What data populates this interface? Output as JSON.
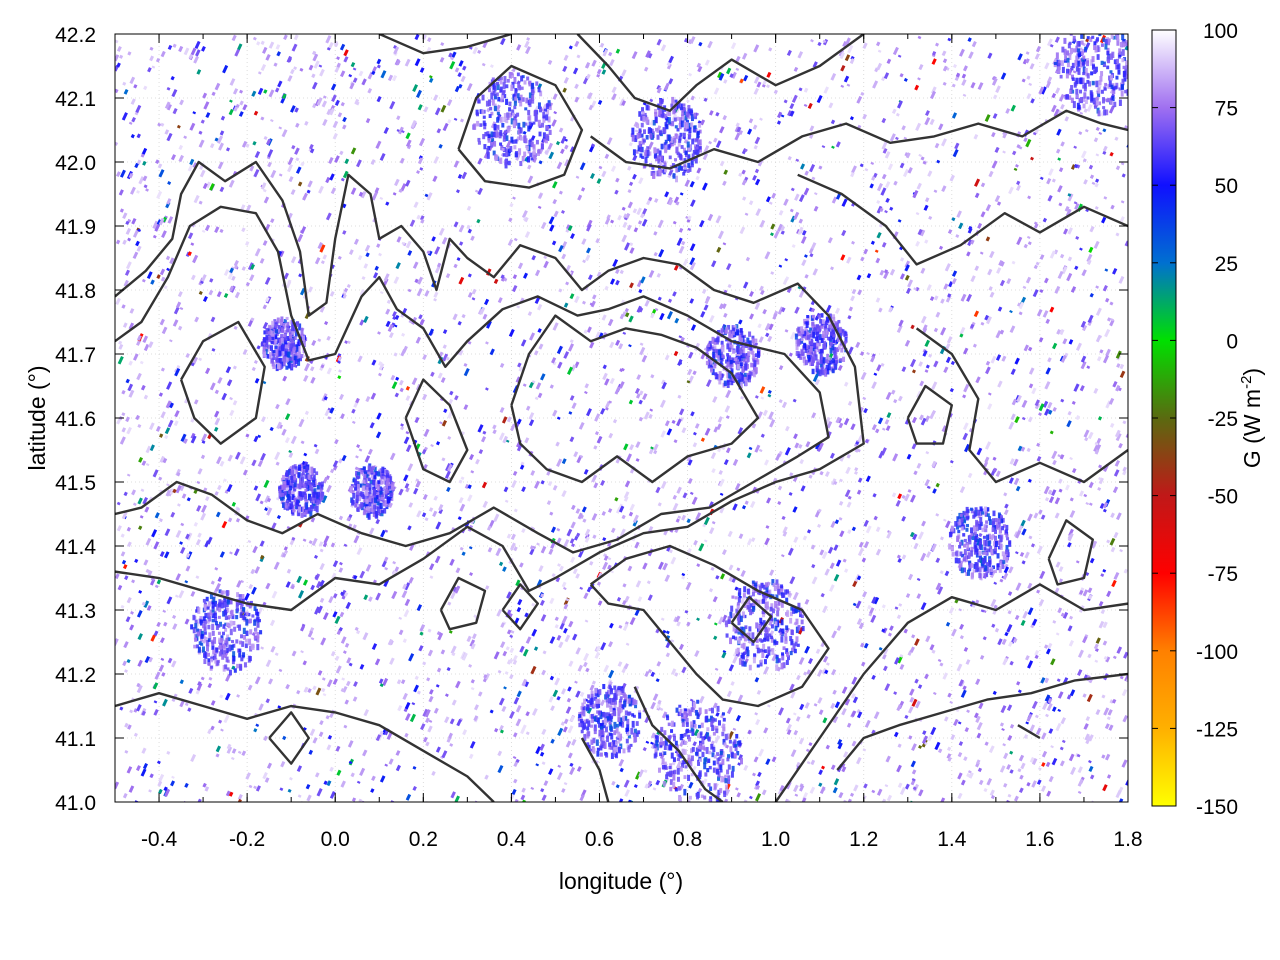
{
  "chart_data": {
    "type": "heatmap",
    "title": "",
    "xlabel": "longitude (°)",
    "ylabel": "latitude (°)",
    "xlim": [
      -0.5,
      1.8
    ],
    "ylim": [
      41.0,
      42.2
    ],
    "xticks": [
      -0.4,
      -0.2,
      0.0,
      0.2,
      0.4,
      0.6,
      0.8,
      1.0,
      1.2,
      1.4,
      1.6,
      1.8
    ],
    "xtick_labels": [
      "-0.4",
      "-0.2",
      "0.0",
      "0.2",
      "0.4",
      "0.6",
      "0.8",
      "1.0",
      "1.2",
      "1.4",
      "1.6",
      "1.8"
    ],
    "yticks": [
      41.0,
      41.1,
      41.2,
      41.3,
      41.4,
      41.5,
      41.6,
      41.7,
      41.8,
      41.9,
      42.0,
      42.1,
      42.2
    ],
    "ytick_labels": [
      "41.0",
      "41.1",
      "41.2",
      "41.3",
      "41.4",
      "41.5",
      "41.6",
      "41.7",
      "41.8",
      "41.9",
      "42.0",
      "42.1",
      "42.2"
    ],
    "grid": true,
    "colorbar": {
      "label_main": "G (W m",
      "label_sup": "-2",
      "label_end": ")",
      "range": [
        -150,
        100
      ],
      "ticks": [
        100,
        75,
        50,
        25,
        0,
        -25,
        -50,
        -75,
        -100,
        -125,
        -150
      ],
      "tick_labels": [
        "100",
        "75",
        "50",
        "25",
        "0",
        "-25",
        "-50",
        "-75",
        "-100",
        "-125",
        "-150"
      ],
      "palette": [
        {
          "value": 100,
          "color": "#ffffff"
        },
        {
          "value": 75,
          "color": "#a070f0"
        },
        {
          "value": 50,
          "color": "#1010ff"
        },
        {
          "value": 25,
          "color": "#0070d0"
        },
        {
          "value": 0,
          "color": "#00e000"
        },
        {
          "value": -25,
          "color": "#5a6a10"
        },
        {
          "value": -50,
          "color": "#c01818"
        },
        {
          "value": -75,
          "color": "#ff0000"
        },
        {
          "value": -100,
          "color": "#ff8000"
        },
        {
          "value": -125,
          "color": "#ffb000"
        },
        {
          "value": -150,
          "color": "#ffff00"
        }
      ]
    },
    "purple_regions": [
      {
        "lon": -0.12,
        "lat": 41.72,
        "radius": 0.05
      },
      {
        "lon": 0.9,
        "lat": 41.7,
        "radius": 0.06
      },
      {
        "lon": -0.08,
        "lat": 41.49,
        "radius": 0.05
      },
      {
        "lon": 0.08,
        "lat": 41.49,
        "radius": 0.05
      },
      {
        "lon": 0.97,
        "lat": 41.28,
        "radius": 0.09
      },
      {
        "lon": 0.82,
        "lat": 41.08,
        "radius": 0.1
      },
      {
        "lon": 1.72,
        "lat": 42.15,
        "radius": 0.09
      },
      {
        "lon": 0.4,
        "lat": 42.07,
        "radius": 0.09
      },
      {
        "lon": 0.75,
        "lat": 42.04,
        "radius": 0.08
      },
      {
        "lon": 1.46,
        "lat": 41.41,
        "radius": 0.07
      },
      {
        "lon": -0.25,
        "lat": 41.27,
        "radius": 0.08
      },
      {
        "lon": 0.62,
        "lat": 41.13,
        "radius": 0.07
      },
      {
        "lon": 1.1,
        "lat": 41.72,
        "radius": 0.06
      }
    ],
    "contours": [
      [
        [
          -0.5,
          41.79
        ],
        [
          -0.43,
          41.83
        ],
        [
          -0.37,
          41.88
        ],
        [
          -0.35,
          41.95
        ],
        [
          -0.31,
          42.0
        ],
        [
          -0.25,
          41.97
        ],
        [
          -0.18,
          42.0
        ],
        [
          -0.12,
          41.94
        ],
        [
          -0.08,
          41.86
        ],
        [
          -0.06,
          41.76
        ],
        [
          -0.02,
          41.78
        ],
        [
          0.0,
          41.88
        ],
        [
          0.03,
          41.98
        ],
        [
          0.08,
          41.95
        ],
        [
          0.1,
          41.88
        ],
        [
          0.15,
          41.9
        ],
        [
          0.2,
          41.86
        ],
        [
          0.23,
          41.8
        ],
        [
          0.26,
          41.88
        ],
        [
          0.3,
          41.85
        ],
        [
          0.36,
          41.82
        ],
        [
          0.42,
          41.87
        ],
        [
          0.5,
          41.85
        ],
        [
          0.56,
          41.8
        ],
        [
          0.62,
          41.83
        ],
        [
          0.7,
          41.85
        ],
        [
          0.78,
          41.84
        ],
        [
          0.86,
          41.8
        ],
        [
          0.95,
          41.78
        ],
        [
          1.05,
          41.81
        ],
        [
          1.12,
          41.76
        ],
        [
          1.18,
          41.68
        ],
        [
          1.2,
          41.56
        ],
        [
          1.1,
          41.52
        ],
        [
          1.0,
          41.5
        ],
        [
          0.9,
          41.47
        ],
        [
          0.8,
          41.43
        ],
        [
          0.7,
          41.42
        ],
        [
          0.6,
          41.39
        ],
        [
          0.5,
          41.35
        ],
        [
          0.44,
          41.33
        ],
        [
          0.38,
          41.4
        ],
        [
          0.3,
          41.43
        ],
        [
          0.2,
          41.38
        ],
        [
          0.1,
          41.34
        ],
        [
          0.0,
          41.35
        ],
        [
          -0.1,
          41.3
        ],
        [
          -0.2,
          41.31
        ],
        [
          -0.3,
          41.33
        ],
        [
          -0.4,
          41.35
        ],
        [
          -0.5,
          41.36
        ]
      ],
      [
        [
          -0.5,
          41.72
        ],
        [
          -0.44,
          41.75
        ],
        [
          -0.38,
          41.82
        ],
        [
          -0.33,
          41.9
        ],
        [
          -0.26,
          41.93
        ],
        [
          -0.18,
          41.92
        ],
        [
          -0.13,
          41.86
        ],
        [
          -0.1,
          41.76
        ],
        [
          -0.06,
          41.69
        ],
        [
          0.0,
          41.7
        ],
        [
          0.06,
          41.79
        ],
        [
          0.1,
          41.82
        ],
        [
          0.14,
          41.77
        ],
        [
          0.2,
          41.74
        ],
        [
          0.25,
          41.68
        ],
        [
          0.3,
          41.72
        ],
        [
          0.38,
          41.77
        ],
        [
          0.46,
          41.79
        ],
        [
          0.55,
          41.76
        ],
        [
          0.62,
          41.77
        ],
        [
          0.7,
          41.79
        ],
        [
          0.8,
          41.76
        ],
        [
          0.9,
          41.72
        ],
        [
          1.02,
          41.7
        ],
        [
          1.1,
          41.64
        ],
        [
          1.12,
          41.57
        ],
        [
          1.05,
          41.54
        ],
        [
          0.95,
          41.5
        ],
        [
          0.85,
          41.46
        ],
        [
          0.74,
          41.45
        ],
        [
          0.64,
          41.41
        ],
        [
          0.54,
          41.39
        ],
        [
          0.46,
          41.42
        ],
        [
          0.36,
          41.46
        ],
        [
          0.26,
          41.42
        ],
        [
          0.16,
          41.4
        ],
        [
          0.06,
          41.42
        ],
        [
          -0.04,
          41.45
        ],
        [
          -0.12,
          41.42
        ],
        [
          -0.2,
          41.44
        ],
        [
          -0.28,
          41.48
        ],
        [
          -0.36,
          41.5
        ],
        [
          -0.44,
          41.46
        ],
        [
          -0.5,
          41.45
        ]
      ],
      [
        [
          0.4,
          41.62
        ],
        [
          0.44,
          41.7
        ],
        [
          0.5,
          41.76
        ],
        [
          0.58,
          41.72
        ],
        [
          0.66,
          41.74
        ],
        [
          0.74,
          41.73
        ],
        [
          0.82,
          41.71
        ],
        [
          0.9,
          41.67
        ],
        [
          0.96,
          41.6
        ],
        [
          0.9,
          41.56
        ],
        [
          0.8,
          41.54
        ],
        [
          0.72,
          41.5
        ],
        [
          0.64,
          41.54
        ],
        [
          0.56,
          41.5
        ],
        [
          0.48,
          41.52
        ],
        [
          0.42,
          41.56
        ],
        [
          0.4,
          41.62
        ]
      ],
      [
        [
          -0.35,
          41.66
        ],
        [
          -0.3,
          41.72
        ],
        [
          -0.22,
          41.75
        ],
        [
          -0.16,
          41.68
        ],
        [
          -0.18,
          41.6
        ],
        [
          -0.26,
          41.56
        ],
        [
          -0.32,
          41.6
        ],
        [
          -0.35,
          41.66
        ]
      ],
      [
        [
          0.16,
          41.6
        ],
        [
          0.2,
          41.66
        ],
        [
          0.26,
          41.62
        ],
        [
          0.3,
          41.55
        ],
        [
          0.26,
          41.5
        ],
        [
          0.2,
          41.52
        ],
        [
          0.16,
          41.6
        ]
      ],
      [
        [
          0.28,
          42.02
        ],
        [
          0.32,
          42.1
        ],
        [
          0.4,
          42.15
        ],
        [
          0.5,
          42.12
        ],
        [
          0.56,
          42.05
        ],
        [
          0.52,
          41.98
        ],
        [
          0.44,
          41.96
        ],
        [
          0.34,
          41.97
        ],
        [
          0.28,
          42.02
        ]
      ],
      [
        [
          0.1,
          42.2
        ],
        [
          0.2,
          42.17
        ],
        [
          0.3,
          42.18
        ],
        [
          0.4,
          42.2
        ]
      ],
      [
        [
          0.55,
          42.2
        ],
        [
          0.62,
          42.15
        ],
        [
          0.68,
          42.1
        ],
        [
          0.76,
          42.08
        ],
        [
          0.82,
          42.12
        ],
        [
          0.9,
          42.16
        ],
        [
          1.0,
          42.12
        ],
        [
          1.1,
          42.15
        ],
        [
          1.2,
          42.2
        ]
      ],
      [
        [
          0.58,
          42.04
        ],
        [
          0.66,
          42.0
        ],
        [
          0.76,
          41.99
        ],
        [
          0.86,
          42.02
        ],
        [
          0.96,
          42.0
        ],
        [
          1.06,
          42.04
        ],
        [
          1.16,
          42.06
        ],
        [
          1.26,
          42.03
        ],
        [
          1.36,
          42.04
        ],
        [
          1.46,
          42.06
        ],
        [
          1.56,
          42.04
        ],
        [
          1.66,
          42.08
        ],
        [
          1.74,
          42.06
        ],
        [
          1.8,
          42.05
        ]
      ],
      [
        [
          1.05,
          41.98
        ],
        [
          1.15,
          41.95
        ],
        [
          1.25,
          41.9
        ],
        [
          1.32,
          41.84
        ],
        [
          1.42,
          41.87
        ],
        [
          1.52,
          41.92
        ],
        [
          1.6,
          41.89
        ],
        [
          1.7,
          41.93
        ],
        [
          1.8,
          41.9
        ]
      ],
      [
        [
          1.32,
          41.74
        ],
        [
          1.4,
          41.7
        ],
        [
          1.46,
          41.63
        ],
        [
          1.44,
          41.55
        ],
        [
          1.5,
          41.5
        ],
        [
          1.6,
          41.53
        ],
        [
          1.7,
          41.5
        ],
        [
          1.8,
          41.55
        ]
      ],
      [
        [
          0.58,
          41.34
        ],
        [
          0.66,
          41.38
        ],
        [
          0.76,
          41.4
        ],
        [
          0.86,
          41.37
        ],
        [
          0.96,
          41.33
        ],
        [
          1.06,
          41.3
        ],
        [
          1.12,
          41.24
        ],
        [
          1.06,
          41.18
        ],
        [
          0.96,
          41.15
        ],
        [
          0.88,
          41.16
        ],
        [
          0.82,
          41.2
        ],
        [
          0.76,
          41.25
        ],
        [
          0.7,
          41.3
        ],
        [
          0.62,
          41.31
        ],
        [
          0.58,
          41.34
        ]
      ],
      [
        [
          0.68,
          41.18
        ],
        [
          0.72,
          41.12
        ],
        [
          0.78,
          41.08
        ],
        [
          0.84,
          41.02
        ],
        [
          0.88,
          41.0
        ]
      ],
      [
        [
          0.56,
          41.1
        ],
        [
          0.6,
          41.05
        ],
        [
          0.62,
          41.0
        ]
      ],
      [
        [
          1.0,
          41.0
        ],
        [
          1.1,
          41.1
        ],
        [
          1.2,
          41.2
        ],
        [
          1.3,
          41.28
        ],
        [
          1.4,
          41.32
        ],
        [
          1.5,
          41.3
        ],
        [
          1.6,
          41.34
        ],
        [
          1.7,
          41.3
        ],
        [
          1.8,
          41.31
        ]
      ],
      [
        [
          1.14,
          41.05
        ],
        [
          1.2,
          41.1
        ],
        [
          1.28,
          41.12
        ],
        [
          1.38,
          41.14
        ],
        [
          1.48,
          41.16
        ],
        [
          1.58,
          41.17
        ],
        [
          1.68,
          41.19
        ],
        [
          1.8,
          41.2
        ]
      ],
      [
        [
          -0.5,
          41.15
        ],
        [
          -0.4,
          41.17
        ],
        [
          -0.3,
          41.15
        ],
        [
          -0.2,
          41.13
        ],
        [
          -0.1,
          41.15
        ],
        [
          0.0,
          41.14
        ],
        [
          0.1,
          41.12
        ],
        [
          0.2,
          41.08
        ],
        [
          0.3,
          41.04
        ],
        [
          0.36,
          41.0
        ]
      ],
      [
        [
          0.24,
          41.3
        ],
        [
          0.28,
          41.35
        ],
        [
          0.34,
          41.33
        ],
        [
          0.32,
          41.28
        ],
        [
          0.26,
          41.27
        ],
        [
          0.24,
          41.3
        ]
      ],
      [
        [
          0.38,
          41.3
        ],
        [
          0.42,
          41.34
        ],
        [
          0.46,
          41.31
        ],
        [
          0.42,
          41.27
        ],
        [
          0.38,
          41.3
        ]
      ],
      [
        [
          1.3,
          41.6
        ],
        [
          1.34,
          41.65
        ],
        [
          1.4,
          41.62
        ],
        [
          1.38,
          41.56
        ],
        [
          1.32,
          41.56
        ],
        [
          1.3,
          41.6
        ]
      ],
      [
        [
          1.62,
          41.38
        ],
        [
          1.66,
          41.44
        ],
        [
          1.72,
          41.41
        ],
        [
          1.7,
          41.35
        ],
        [
          1.64,
          41.34
        ],
        [
          1.62,
          41.38
        ]
      ],
      [
        [
          -0.15,
          41.1
        ],
        [
          -0.1,
          41.14
        ],
        [
          -0.06,
          41.1
        ],
        [
          -0.1,
          41.06
        ],
        [
          -0.15,
          41.1
        ]
      ],
      [
        [
          0.9,
          41.28
        ],
        [
          0.94,
          41.32
        ],
        [
          0.99,
          41.29
        ],
        [
          0.95,
          41.25
        ],
        [
          0.9,
          41.28
        ]
      ],
      [
        [
          1.55,
          41.12
        ],
        [
          1.6,
          41.1
        ]
      ]
    ]
  }
}
